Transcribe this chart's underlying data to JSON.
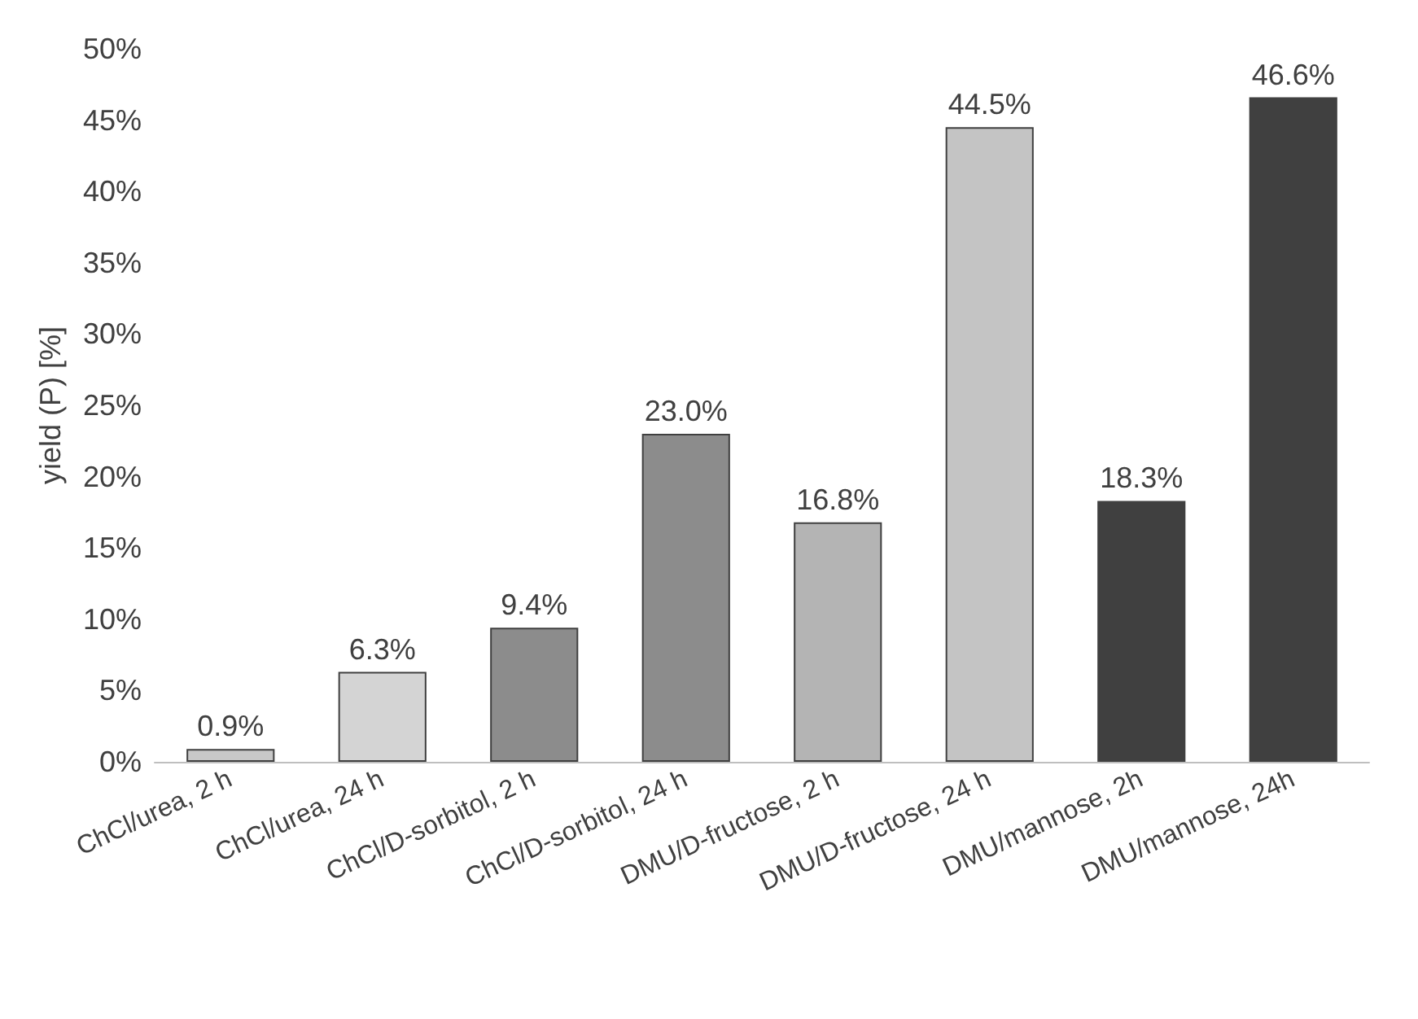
{
  "chart_data": {
    "type": "bar",
    "ylabel": "yield (P) [%]",
    "categories": [
      "ChCl/urea, 2 h",
      "ChCl/urea, 24 h",
      "ChCl/D-sorbitol, 2 h",
      "ChCl/D-sorbitol, 24 h",
      "DMU/D-fructose, 2 h",
      "DMU/D-fructose, 24 h",
      "DMU/mannose, 2h",
      "DMU/mannose, 24h"
    ],
    "values": [
      0.9,
      6.3,
      9.4,
      23.0,
      16.8,
      44.5,
      18.3,
      46.6
    ],
    "value_labels": [
      "0.9%",
      "6.3%",
      "9.4%",
      "23.0%",
      "16.8%",
      "44.5%",
      "18.3%",
      "46.6%"
    ],
    "colors": [
      "#c8c8c8",
      "#d4d4d4",
      "#8c8c8c",
      "#8c8c8c",
      "#b4b4b4",
      "#c4c4c4",
      "#404040",
      "#404040"
    ],
    "ylim": [
      0,
      50
    ],
    "yticks": [
      {
        "value": 0,
        "label": "0%"
      },
      {
        "value": 5,
        "label": "5%"
      },
      {
        "value": 10,
        "label": "10%"
      },
      {
        "value": 15,
        "label": "15%"
      },
      {
        "value": 20,
        "label": "20%"
      },
      {
        "value": 25,
        "label": "25%"
      },
      {
        "value": 30,
        "label": "30%"
      },
      {
        "value": 35,
        "label": "35%"
      },
      {
        "value": 40,
        "label": "40%"
      },
      {
        "value": 45,
        "label": "45%"
      },
      {
        "value": 50,
        "label": "50%"
      }
    ],
    "grid": false
  }
}
